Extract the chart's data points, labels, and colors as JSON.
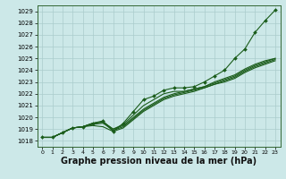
{
  "bg_color": "#cce8e8",
  "grid_color": "#aacccc",
  "line_color": "#1a5c1a",
  "marker_color": "#1a5c1a",
  "xlabel": "Graphe pression niveau de la mer (hPa)",
  "xlabel_fontsize": 7.0,
  "ylabel_ticks": [
    1018,
    1019,
    1020,
    1021,
    1022,
    1023,
    1024,
    1025,
    1026,
    1027,
    1028,
    1029
  ],
  "xlim": [
    -0.5,
    23.5
  ],
  "ylim": [
    1017.5,
    1029.5
  ],
  "xticks": [
    0,
    1,
    2,
    3,
    4,
    5,
    6,
    7,
    8,
    9,
    10,
    11,
    12,
    13,
    14,
    15,
    16,
    17,
    18,
    19,
    20,
    21,
    22,
    23
  ],
  "series": [
    [
      1018.3,
      1018.3,
      1018.7,
      1019.1,
      1019.2,
      1019.3,
      1019.2,
      1018.8,
      1019.1,
      1019.8,
      1020.5,
      1021.0,
      1021.5,
      1021.8,
      1022.0,
      1022.2,
      1022.5,
      1022.8,
      1023.0,
      1023.3,
      1023.8,
      1024.2,
      1024.5,
      1024.8
    ],
    [
      1018.3,
      1018.3,
      1018.7,
      1019.1,
      1019.2,
      1019.4,
      1019.5,
      1018.9,
      1019.2,
      1019.9,
      1020.6,
      1021.1,
      1021.6,
      1021.9,
      1022.1,
      1022.3,
      1022.5,
      1022.8,
      1023.1,
      1023.4,
      1023.9,
      1024.3,
      1024.6,
      1024.9
    ],
    [
      1018.3,
      1018.3,
      1018.7,
      1019.1,
      1019.2,
      1019.5,
      1019.6,
      1019.0,
      1019.3,
      1020.0,
      1020.7,
      1021.2,
      1021.7,
      1022.0,
      1022.2,
      1022.4,
      1022.6,
      1022.9,
      1023.2,
      1023.5,
      1024.0,
      1024.4,
      1024.7,
      1025.0
    ],
    [
      1018.3,
      1018.3,
      1018.7,
      1019.1,
      1019.2,
      1019.5,
      1019.6,
      1019.0,
      1019.4,
      1020.2,
      1021.0,
      1021.5,
      1022.0,
      1022.2,
      1022.2,
      1022.4,
      1022.6,
      1023.0,
      1023.3,
      1023.6,
      1024.1,
      1024.5,
      1024.8,
      1025.0
    ],
    [
      1018.3,
      1018.3,
      1018.7,
      1019.1,
      1019.2,
      1019.5,
      1019.7,
      1018.8,
      1019.5,
      1020.5,
      1021.5,
      1021.8,
      1022.3,
      1022.5,
      1022.5,
      1022.6,
      1023.0,
      1023.5,
      1024.0,
      1025.0,
      1025.8,
      1027.2,
      1028.2,
      1029.1
    ]
  ],
  "has_markers": [
    false,
    false,
    false,
    false,
    true
  ]
}
